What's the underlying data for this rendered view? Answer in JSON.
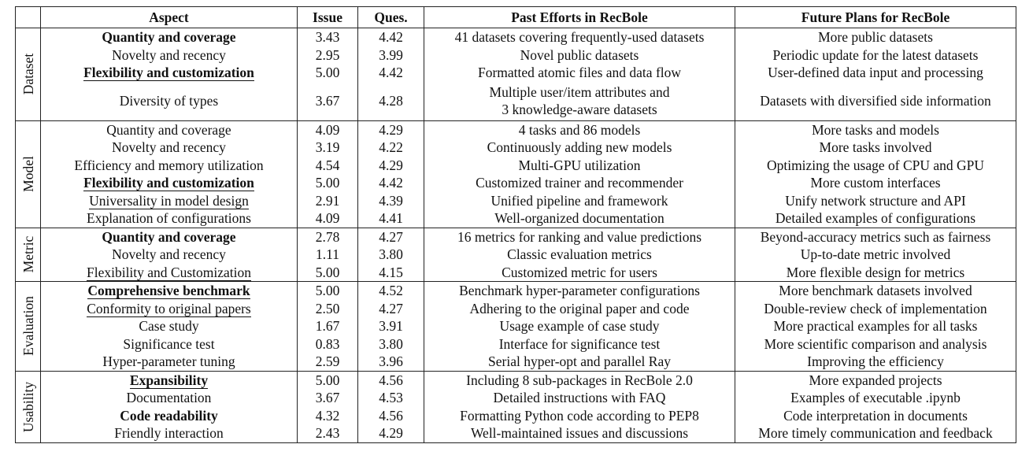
{
  "headers": [
    "",
    "Aspect",
    "Issue",
    "Ques.",
    "Past Efforts in RecBole",
    "Future Plans for RecBole"
  ],
  "groups": [
    {
      "name": "Dataset",
      "rows": [
        {
          "aspect": "Quantity and coverage",
          "bold": true,
          "underline": false,
          "issue": "3.43",
          "ques": "4.42",
          "past": "41 datasets covering frequently-used datasets",
          "future": "More public datasets"
        },
        {
          "aspect": "Novelty and recency",
          "bold": false,
          "underline": false,
          "issue": "2.95",
          "ques": "3.99",
          "past": "Novel public datasets",
          "future": "Periodic update for the latest datasets"
        },
        {
          "aspect": "Flexibility and customization",
          "bold": true,
          "underline": true,
          "issue": "5.00",
          "ques": "4.42",
          "past": "Formatted atomic files and data flow",
          "future": "User-defined data input and processing"
        },
        {
          "aspect": "Diversity of types",
          "bold": false,
          "underline": false,
          "issue": "3.67",
          "ques": "4.28",
          "past_lines": [
            "Multiple user/item attributes and",
            "3 knowledge-aware datasets"
          ],
          "future": "Datasets with diversified side information"
        }
      ]
    },
    {
      "name": "Model",
      "rows": [
        {
          "aspect": "Quantity and coverage",
          "bold": false,
          "underline": false,
          "issue": "4.09",
          "ques": "4.29",
          "past": "4 tasks and 86 models",
          "future": "More tasks and models"
        },
        {
          "aspect": "Novelty and recency",
          "bold": false,
          "underline": false,
          "issue": "3.19",
          "ques": "4.22",
          "past": "Continuously adding new models",
          "future": "More tasks involved"
        },
        {
          "aspect": "Efficiency and memory utilization",
          "bold": false,
          "underline": false,
          "issue": "4.54",
          "ques": "4.29",
          "past": "Multi-GPU utilization",
          "future": "Optimizing the usage of CPU and GPU"
        },
        {
          "aspect": "Flexibility and customization",
          "bold": true,
          "underline": true,
          "issue": "5.00",
          "ques": "4.42",
          "past": "Customized trainer and recommender",
          "future": "More custom interfaces"
        },
        {
          "aspect": "Universality in model design",
          "bold": false,
          "underline": true,
          "issue": "2.91",
          "ques": "4.39",
          "past": "Unified pipeline and framework",
          "future": "Unify network structure and API"
        },
        {
          "aspect": "Explanation of configurations",
          "bold": false,
          "underline": false,
          "issue": "4.09",
          "ques": "4.41",
          "past": "Well-organized documentation",
          "future": "Detailed examples of configurations"
        }
      ]
    },
    {
      "name": "Metric",
      "rows": [
        {
          "aspect": "Quantity and coverage",
          "bold": true,
          "underline": false,
          "issue": "2.78",
          "ques": "4.27",
          "past": "16 metrics for ranking and value predictions",
          "future": "Beyond-accuracy metrics such as fairness"
        },
        {
          "aspect": "Novelty and recency",
          "bold": false,
          "underline": false,
          "issue": "1.11",
          "ques": "3.80",
          "past": "Classic evaluation metrics",
          "future": "Up-to-date metric involved"
        },
        {
          "aspect": "Flexibility and Customization",
          "bold": false,
          "underline": true,
          "issue": "5.00",
          "ques": "4.15",
          "past": "Customized metric for users",
          "future": "More flexible design for metrics"
        }
      ]
    },
    {
      "name": "Evaluation",
      "rows": [
        {
          "aspect": "Comprehensive benchmark",
          "bold": true,
          "underline": true,
          "issue": "5.00",
          "ques": "4.52",
          "past": "Benchmark hyper-parameter configurations",
          "future": "More benchmark datasets involved"
        },
        {
          "aspect": "Conformity to original papers",
          "bold": false,
          "underline": true,
          "issue": "2.50",
          "ques": "4.27",
          "past": "Adhering to the original paper and code",
          "future": "Double-review check of implementation"
        },
        {
          "aspect": "Case study",
          "bold": false,
          "underline": false,
          "issue": "1.67",
          "ques": "3.91",
          "past": "Usage example of case study",
          "future": "More practical examples for all tasks"
        },
        {
          "aspect": "Significance test",
          "bold": false,
          "underline": false,
          "issue": "0.83",
          "ques": "3.80",
          "past": "Interface for significance test",
          "future": "More scientific comparison and analysis"
        },
        {
          "aspect": "Hyper-parameter tuning",
          "bold": false,
          "underline": false,
          "issue": "2.59",
          "ques": "3.96",
          "past": "Serial hyper-opt and parallel Ray",
          "future": "Improving the efficiency"
        }
      ]
    },
    {
      "name": "Usability",
      "rows": [
        {
          "aspect": "Expansibility",
          "bold": true,
          "underline": true,
          "issue": "5.00",
          "ques": "4.56",
          "past": "Including 8 sub-packages in RecBole 2.0",
          "future": "More expanded projects"
        },
        {
          "aspect": "Documentation",
          "bold": false,
          "underline": false,
          "issue": "3.67",
          "ques": "4.53",
          "past": "Detailed instructions with FAQ",
          "future": "Examples of executable .ipynb"
        },
        {
          "aspect": "Code readability",
          "bold": true,
          "underline": false,
          "issue": "4.32",
          "ques": "4.56",
          "past": "Formatting Python code according to PEP8",
          "future": "Code interpretation in documents"
        },
        {
          "aspect": "Friendly interaction",
          "bold": false,
          "underline": false,
          "issue": "2.43",
          "ques": "4.29",
          "past": "Well-maintained issues and discussions",
          "future": "More timely communication and feedback"
        }
      ]
    }
  ]
}
